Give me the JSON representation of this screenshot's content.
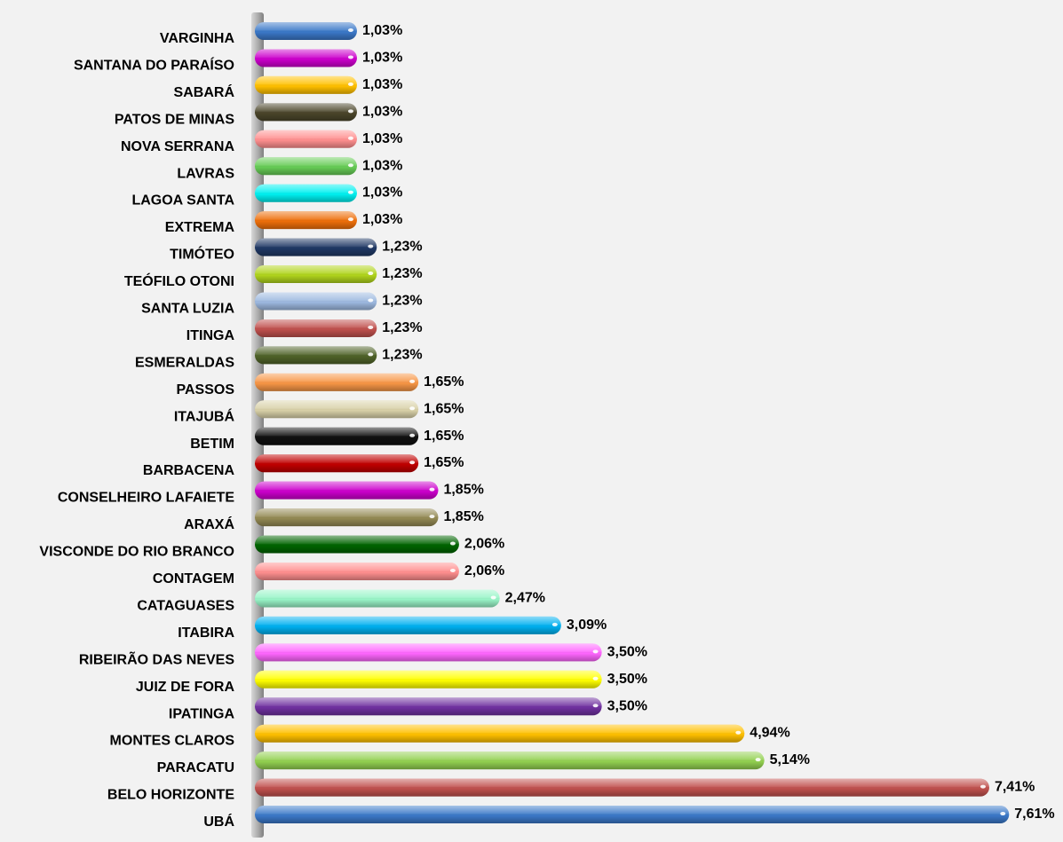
{
  "chart_data": {
    "type": "bar",
    "orientation": "horizontal",
    "value_format": "percent",
    "categories": [
      "VARGINHA",
      "SANTANA DO PARAÍSO",
      "SABARÁ",
      "PATOS DE MINAS",
      "NOVA SERRANA",
      "LAVRAS",
      "LAGOA SANTA",
      "EXTREMA",
      "TIMÓTEO",
      "TEÓFILO OTONI",
      "SANTA LUZIA",
      "ITINGA",
      "ESMERALDAS",
      "PASSOS",
      "ITAJUBÁ",
      "BETIM",
      "BARBACENA",
      "CONSELHEIRO LAFAIETE",
      "ARAXÁ",
      "VISCONDE DO RIO BRANCO",
      "CONTAGEM",
      "CATAGUASES",
      "ITABIRA",
      "RIBEIRÃO DAS NEVES",
      "JUIZ DE FORA",
      "IPATINGA",
      "MONTES CLAROS",
      "PARACATU",
      "BELO HORIZONTE",
      "UBÁ"
    ],
    "values": [
      1.03,
      1.03,
      1.03,
      1.03,
      1.03,
      1.03,
      1.03,
      1.03,
      1.23,
      1.23,
      1.23,
      1.23,
      1.23,
      1.65,
      1.65,
      1.65,
      1.65,
      1.85,
      1.85,
      2.06,
      2.06,
      2.47,
      3.09,
      3.5,
      3.5,
      3.5,
      4.94,
      5.14,
      7.41,
      7.61
    ],
    "value_labels": [
      "1,03%",
      "1,03%",
      "1,03%",
      "1,03%",
      "1,03%",
      "1,03%",
      "1,03%",
      "1,03%",
      "1,23%",
      "1,23%",
      "1,23%",
      "1,23%",
      "1,23%",
      "1,65%",
      "1,65%",
      "1,65%",
      "1,65%",
      "1,85%",
      "1,85%",
      "2,06%",
      "2,06%",
      "2,47%",
      "3,09%",
      "3,50%",
      "3,50%",
      "3,50%",
      "4,94%",
      "5,14%",
      "7,41%",
      "7,61%"
    ],
    "colors": [
      "#3a78c8",
      "#cc00cc",
      "#ffc000",
      "#4a452a",
      "#ff8f8f",
      "#66cc55",
      "#00f0f0",
      "#ee6f0a",
      "#1f3864",
      "#b0d41c",
      "#9db9e0",
      "#c0504d",
      "#4f6228",
      "#f79646",
      "#d9d1a8",
      "#101010",
      "#c00000",
      "#cc00cc",
      "#938953",
      "#006400",
      "#ff8f8f",
      "#99f5c8",
      "#00b0f0",
      "#ff66ff",
      "#ffff00",
      "#7030a0",
      "#ffc000",
      "#92d050",
      "#c0504d",
      "#3a78c8"
    ],
    "title": "",
    "xlabel": "",
    "ylabel": "",
    "xlim": [
      0,
      8
    ],
    "grid": false,
    "legend": "none"
  }
}
